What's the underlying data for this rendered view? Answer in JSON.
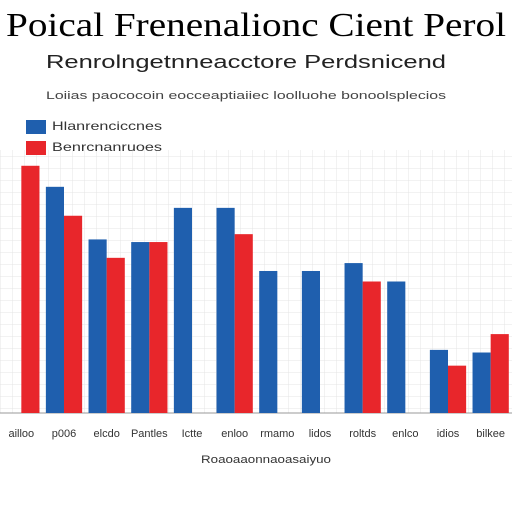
{
  "chart_data": {
    "type": "bar",
    "title": "Poical Frenenalionc Cient Perol",
    "subtitle": "Renrolngetnneacctore Perdsnicend",
    "note": "Loiias paococoin eocceaptiaiiec loolluohe bonoolsplecios",
    "xlabel": "Roaoaaonnaoasaiyuo",
    "categories": [
      "ailloo",
      "p006",
      "elcdo",
      "Pantles",
      "Ictte",
      "enloo",
      "rmamo",
      "lidos",
      "roltds",
      "enlco",
      "idios",
      "bilkee"
    ],
    "series": [
      {
        "name": "Hlanrenciccnes",
        "color": "#1f5fae",
        "values": [
          null,
          86,
          66,
          65,
          78,
          78,
          54,
          54,
          57,
          50,
          24,
          23
        ]
      },
      {
        "name": "Benrcnanruoes",
        "color": "#e8262b",
        "values": [
          94,
          75,
          59,
          65,
          null,
          68,
          null,
          null,
          50,
          null,
          18,
          30
        ]
      }
    ],
    "ylim": [
      0,
      100
    ],
    "grid": true,
    "legend": "top-left"
  }
}
